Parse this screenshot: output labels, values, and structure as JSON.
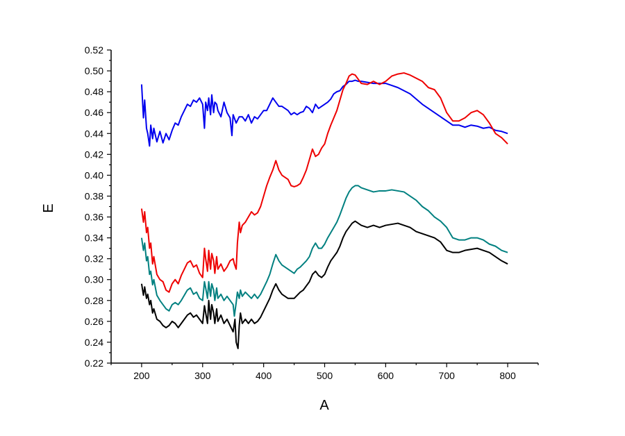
{
  "chart_data": {
    "type": "line",
    "title": "",
    "xlabel": "A",
    "ylabel": "E",
    "xlim": [
      150,
      850
    ],
    "ylim": [
      0.22,
      0.52
    ],
    "xticks": [
      200,
      300,
      400,
      500,
      600,
      700,
      800
    ],
    "xtick_labels": [
      "200",
      "300",
      "400",
      "500",
      "600",
      "700",
      "800"
    ],
    "yticks": [
      0.22,
      0.24,
      0.26,
      0.28,
      0.3,
      0.32,
      0.34,
      0.36,
      0.38,
      0.4,
      0.42,
      0.44,
      0.46,
      0.48,
      0.5,
      0.52
    ],
    "ytick_labels": [
      "0.22",
      "0.24",
      "0.26",
      "0.28",
      "0.30",
      "0.32",
      "0.34",
      "0.36",
      "0.38",
      "0.40",
      "0.42",
      "0.44",
      "0.46",
      "0.48",
      "0.50",
      "0.52"
    ],
    "grid": false,
    "legend": "none",
    "series": [
      {
        "color": "#0000ee",
        "x": [
          200,
          203,
          205,
          208,
          210,
          213,
          215,
          218,
          220,
          225,
          230,
          235,
          240,
          245,
          250,
          255,
          260,
          265,
          270,
          275,
          280,
          285,
          290,
          295,
          300,
          303,
          305,
          308,
          310,
          313,
          315,
          318,
          320,
          323,
          325,
          330,
          335,
          340,
          345,
          348,
          350,
          355,
          360,
          365,
          370,
          375,
          380,
          385,
          390,
          395,
          400,
          405,
          410,
          415,
          420,
          425,
          430,
          435,
          440,
          445,
          450,
          455,
          460,
          465,
          470,
          475,
          480,
          485,
          490,
          495,
          500,
          505,
          510,
          515,
          520,
          525,
          530,
          535,
          540,
          545,
          550,
          555,
          560,
          570,
          580,
          590,
          600,
          610,
          620,
          630,
          640,
          650,
          660,
          670,
          680,
          690,
          700,
          710,
          720,
          730,
          740,
          750,
          760,
          770,
          780,
          790,
          800
        ],
        "y": [
          0.487,
          0.455,
          0.472,
          0.445,
          0.44,
          0.428,
          0.448,
          0.435,
          0.445,
          0.432,
          0.442,
          0.431,
          0.44,
          0.434,
          0.443,
          0.45,
          0.448,
          0.456,
          0.462,
          0.468,
          0.466,
          0.472,
          0.47,
          0.474,
          0.468,
          0.445,
          0.47,
          0.462,
          0.474,
          0.458,
          0.477,
          0.46,
          0.47,
          0.468,
          0.462,
          0.456,
          0.47,
          0.46,
          0.455,
          0.438,
          0.458,
          0.45,
          0.456,
          0.456,
          0.452,
          0.458,
          0.45,
          0.456,
          0.454,
          0.458,
          0.462,
          0.462,
          0.468,
          0.474,
          0.47,
          0.466,
          0.466,
          0.464,
          0.462,
          0.458,
          0.46,
          0.458,
          0.46,
          0.461,
          0.466,
          0.464,
          0.46,
          0.468,
          0.464,
          0.466,
          0.468,
          0.47,
          0.473,
          0.478,
          0.48,
          0.481,
          0.485,
          0.487,
          0.49,
          0.49,
          0.491,
          0.49,
          0.49,
          0.489,
          0.488,
          0.488,
          0.488,
          0.486,
          0.484,
          0.481,
          0.478,
          0.473,
          0.468,
          0.464,
          0.46,
          0.456,
          0.452,
          0.448,
          0.448,
          0.446,
          0.448,
          0.447,
          0.445,
          0.446,
          0.443,
          0.442,
          0.44
        ]
      },
      {
        "color": "#ee0000",
        "x": [
          200,
          203,
          205,
          208,
          210,
          213,
          215,
          218,
          220,
          225,
          230,
          235,
          240,
          245,
          250,
          255,
          260,
          265,
          270,
          275,
          280,
          285,
          290,
          295,
          300,
          303,
          305,
          308,
          310,
          313,
          315,
          318,
          320,
          323,
          325,
          330,
          335,
          340,
          345,
          350,
          352,
          355,
          357,
          360,
          362,
          365,
          370,
          375,
          380,
          385,
          390,
          395,
          400,
          405,
          410,
          415,
          420,
          425,
          430,
          435,
          440,
          445,
          450,
          455,
          460,
          465,
          470,
          475,
          480,
          485,
          490,
          495,
          500,
          505,
          510,
          515,
          520,
          525,
          530,
          535,
          540,
          545,
          550,
          555,
          560,
          570,
          580,
          590,
          600,
          610,
          620,
          630,
          640,
          650,
          660,
          670,
          680,
          690,
          700,
          710,
          720,
          730,
          740,
          750,
          760,
          770,
          780,
          790,
          800
        ],
        "y": [
          0.368,
          0.355,
          0.365,
          0.345,
          0.35,
          0.33,
          0.335,
          0.315,
          0.322,
          0.305,
          0.3,
          0.298,
          0.29,
          0.288,
          0.296,
          0.3,
          0.296,
          0.304,
          0.31,
          0.316,
          0.318,
          0.312,
          0.314,
          0.306,
          0.302,
          0.33,
          0.32,
          0.308,
          0.328,
          0.31,
          0.325,
          0.318,
          0.306,
          0.322,
          0.31,
          0.315,
          0.308,
          0.312,
          0.318,
          0.32,
          0.315,
          0.31,
          0.335,
          0.355,
          0.345,
          0.352,
          0.355,
          0.36,
          0.365,
          0.362,
          0.364,
          0.37,
          0.38,
          0.39,
          0.398,
          0.405,
          0.414,
          0.405,
          0.4,
          0.398,
          0.396,
          0.39,
          0.389,
          0.39,
          0.392,
          0.398,
          0.405,
          0.415,
          0.425,
          0.418,
          0.42,
          0.426,
          0.43,
          0.44,
          0.448,
          0.455,
          0.462,
          0.472,
          0.482,
          0.488,
          0.495,
          0.497,
          0.496,
          0.492,
          0.488,
          0.487,
          0.49,
          0.487,
          0.49,
          0.495,
          0.497,
          0.498,
          0.496,
          0.493,
          0.49,
          0.484,
          0.482,
          0.474,
          0.46,
          0.452,
          0.452,
          0.455,
          0.46,
          0.462,
          0.458,
          0.45,
          0.44,
          0.436,
          0.43
        ]
      },
      {
        "color": "#008080",
        "x": [
          200,
          203,
          205,
          208,
          210,
          213,
          215,
          218,
          220,
          225,
          230,
          235,
          240,
          245,
          250,
          255,
          260,
          265,
          270,
          275,
          280,
          285,
          290,
          295,
          300,
          303,
          305,
          308,
          310,
          313,
          315,
          318,
          320,
          323,
          325,
          330,
          335,
          340,
          345,
          350,
          352,
          355,
          357,
          360,
          362,
          365,
          370,
          375,
          380,
          385,
          390,
          395,
          400,
          405,
          410,
          415,
          420,
          425,
          430,
          435,
          440,
          445,
          450,
          455,
          460,
          465,
          470,
          475,
          480,
          485,
          490,
          495,
          500,
          505,
          510,
          515,
          520,
          525,
          530,
          535,
          540,
          545,
          550,
          555,
          560,
          570,
          580,
          590,
          600,
          610,
          620,
          630,
          640,
          650,
          660,
          670,
          680,
          690,
          700,
          710,
          720,
          730,
          740,
          750,
          760,
          770,
          780,
          790,
          800
        ],
        "y": [
          0.34,
          0.328,
          0.335,
          0.318,
          0.322,
          0.305,
          0.308,
          0.295,
          0.3,
          0.285,
          0.28,
          0.276,
          0.272,
          0.27,
          0.276,
          0.278,
          0.276,
          0.28,
          0.285,
          0.29,
          0.292,
          0.286,
          0.288,
          0.282,
          0.28,
          0.298,
          0.292,
          0.282,
          0.298,
          0.284,
          0.296,
          0.29,
          0.28,
          0.292,
          0.282,
          0.286,
          0.28,
          0.284,
          0.28,
          0.276,
          0.265,
          0.278,
          0.288,
          0.282,
          0.29,
          0.284,
          0.288,
          0.285,
          0.282,
          0.286,
          0.282,
          0.286,
          0.292,
          0.298,
          0.305,
          0.315,
          0.324,
          0.318,
          0.314,
          0.312,
          0.31,
          0.308,
          0.306,
          0.31,
          0.312,
          0.315,
          0.318,
          0.322,
          0.33,
          0.335,
          0.33,
          0.33,
          0.334,
          0.34,
          0.345,
          0.35,
          0.355,
          0.362,
          0.37,
          0.378,
          0.384,
          0.388,
          0.39,
          0.39,
          0.388,
          0.386,
          0.384,
          0.385,
          0.385,
          0.386,
          0.385,
          0.384,
          0.38,
          0.376,
          0.37,
          0.366,
          0.36,
          0.356,
          0.35,
          0.34,
          0.338,
          0.338,
          0.34,
          0.34,
          0.338,
          0.334,
          0.332,
          0.328,
          0.326
        ]
      },
      {
        "color": "#000000",
        "x": [
          200,
          203,
          205,
          208,
          210,
          213,
          215,
          218,
          220,
          225,
          230,
          235,
          240,
          245,
          250,
          255,
          260,
          265,
          270,
          275,
          280,
          285,
          290,
          295,
          300,
          303,
          305,
          308,
          310,
          313,
          315,
          318,
          320,
          323,
          325,
          330,
          335,
          340,
          345,
          350,
          353,
          355,
          358,
          360,
          362,
          365,
          370,
          375,
          380,
          385,
          390,
          395,
          400,
          405,
          410,
          415,
          420,
          425,
          430,
          435,
          440,
          445,
          450,
          455,
          460,
          465,
          470,
          475,
          480,
          485,
          490,
          495,
          500,
          505,
          510,
          515,
          520,
          525,
          530,
          535,
          540,
          545,
          550,
          555,
          560,
          570,
          580,
          590,
          600,
          610,
          620,
          630,
          640,
          650,
          660,
          670,
          680,
          690,
          700,
          710,
          720,
          730,
          740,
          750,
          760,
          770,
          780,
          790,
          800
        ],
        "y": [
          0.296,
          0.285,
          0.293,
          0.282,
          0.286,
          0.276,
          0.28,
          0.268,
          0.272,
          0.262,
          0.26,
          0.256,
          0.254,
          0.256,
          0.26,
          0.258,
          0.254,
          0.258,
          0.262,
          0.266,
          0.268,
          0.264,
          0.266,
          0.262,
          0.258,
          0.275,
          0.268,
          0.258,
          0.28,
          0.262,
          0.276,
          0.268,
          0.258,
          0.272,
          0.26,
          0.266,
          0.258,
          0.262,
          0.256,
          0.25,
          0.262,
          0.24,
          0.234,
          0.256,
          0.268,
          0.258,
          0.262,
          0.258,
          0.262,
          0.258,
          0.26,
          0.264,
          0.27,
          0.276,
          0.282,
          0.29,
          0.296,
          0.29,
          0.286,
          0.284,
          0.282,
          0.282,
          0.282,
          0.285,
          0.288,
          0.29,
          0.294,
          0.298,
          0.305,
          0.308,
          0.304,
          0.302,
          0.305,
          0.312,
          0.318,
          0.322,
          0.326,
          0.332,
          0.34,
          0.346,
          0.35,
          0.354,
          0.356,
          0.354,
          0.352,
          0.35,
          0.352,
          0.35,
          0.352,
          0.353,
          0.354,
          0.352,
          0.35,
          0.346,
          0.344,
          0.342,
          0.34,
          0.336,
          0.328,
          0.326,
          0.326,
          0.328,
          0.329,
          0.33,
          0.328,
          0.326,
          0.322,
          0.318,
          0.315
        ]
      }
    ]
  }
}
